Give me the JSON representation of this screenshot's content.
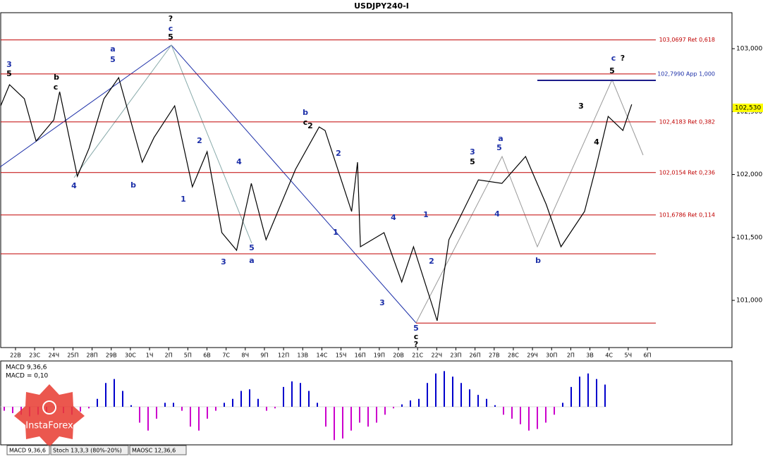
{
  "chart_data": {
    "type": "line",
    "title": "USDJPY240-I",
    "color": "#000000",
    "x": [
      0,
      3,
      8,
      12,
      18,
      20,
      26,
      30,
      35,
      40,
      48,
      52,
      59,
      65,
      70,
      75,
      80,
      85,
      90,
      100,
      108,
      110,
      119,
      121,
      122,
      130,
      136,
      140,
      148,
      152,
      162,
      170,
      178,
      185,
      190,
      198,
      202,
      206,
      211,
      214
    ],
    "values": [
      102546,
      102714,
      102602,
      102266,
      102434,
      102658,
      101986,
      102210,
      102602,
      102770,
      102098,
      102294,
      102546,
      101902,
      102182,
      101538,
      101398,
      101930,
      101482,
      102042,
      102378,
      102350,
      101706,
      102098,
      101426,
      101538,
      101146,
      101426,
      100838,
      101482,
      101958,
      101930,
      102143,
      101762,
      101426,
      101706,
      102070,
      102462,
      102350,
      102557
    ],
    "xlim": [
      0,
      248
    ],
    "ylim": [
      100625,
      103286
    ],
    "yticks": [
      {
        "value": 103000,
        "label": "103,000"
      },
      {
        "value": 102500,
        "label": "102,500"
      },
      {
        "value": 102000,
        "label": "102,000"
      },
      {
        "value": 101500,
        "label": "101,500"
      },
      {
        "value": 101000,
        "label": "101,000"
      }
    ],
    "current_price": {
      "value": 102530,
      "label": "102,530"
    },
    "levels": [
      {
        "value": 103069.7,
        "label": "103,0697 Ret 0,618"
      },
      {
        "value": 102799,
        "label": "102,7990 Арр 1,000"
      },
      {
        "value": 102418.3,
        "label": "102,4183 Ret 0,382"
      },
      {
        "value": 102015.4,
        "label": "102,0154 Ret 0,236"
      },
      {
        "value": 101678.6,
        "label": "101,6786 Ret 0,114"
      },
      101370,
      100820
    ],
    "categories": [
      "22В",
      "23С",
      "24Ч",
      "25П",
      "28П",
      "29В",
      "30С",
      "1Ч",
      "2П",
      "5П",
      "6В",
      "7С",
      "8Ч",
      "9П",
      "12П",
      "13В",
      "14С",
      "15Ч",
      "16П",
      "19П",
      "20В",
      "21С",
      "22Ч",
      "23П",
      "26П",
      "27В",
      "28С",
      "29Ч",
      "30П",
      "2П",
      "3В",
      "4С",
      "5Ч",
      "6П"
    ],
    "wave_labels": [
      {
        "text": "?",
        "color": "#000"
      },
      {
        "text": "c",
        "color": "#1c2fa8"
      },
      {
        "text": "5",
        "color": "#000"
      },
      {
        "text": "a",
        "color": "#1c2fa8"
      },
      {
        "text": "5",
        "color": "#1c2fa8"
      },
      {
        "text": "3",
        "color": "#1c2fa8"
      },
      {
        "text": "5",
        "color": "#000"
      },
      {
        "text": "b",
        "color": "#1c2fa8"
      },
      {
        "text": "c",
        "color": "#000"
      },
      {
        "text": "2",
        "color": "#000"
      },
      {
        "text": "a",
        "color": "#1c2fa8"
      },
      {
        "text": "5",
        "color": "#1c2fa8"
      },
      {
        "text": "3",
        "color": "#1c2fa8"
      },
      {
        "text": "5",
        "color": "#000"
      },
      {
        "text": "c",
        "color": "#1c2fa8"
      },
      {
        "text": "?",
        "color": "#000"
      },
      {
        "text": "5",
        "color": "#000"
      },
      {
        "text": "3",
        "color": "#000"
      },
      {
        "text": "4",
        "color": "#000"
      },
      {
        "text": "1",
        "color": "#1c2fa8"
      },
      {
        "text": "2",
        "color": "#1c2fa8"
      },
      {
        "text": "4",
        "color": "#1c2fa8"
      },
      {
        "text": "3",
        "color": "#1c2fa8"
      },
      {
        "text": "5",
        "color": "#1c2fa8"
      },
      {
        "text": "a",
        "color": "#1c2fa8"
      },
      {
        "text": "b",
        "color": "#1c2fa8"
      },
      {
        "text": "4",
        "color": "#1c2fa8"
      },
      {
        "text": "b",
        "color": "#000"
      },
      {
        "text": "c",
        "color": "#000"
      },
      {
        "text": "1",
        "color": "#1c2fa8"
      },
      {
        "text": "2",
        "color": "#1c2fa8"
      },
      {
        "text": "4",
        "color": "#1c2fa8"
      },
      {
        "text": "3",
        "color": "#1c2fa8"
      },
      {
        "text": "5",
        "color": "#1c2fa8"
      },
      {
        "text": "c",
        "color": "#000"
      },
      {
        "text": "?",
        "color": "#000"
      },
      {
        "text": "b",
        "color": "#1c2fa8"
      },
      {
        "text": "4",
        "color": "#1c2fa8"
      },
      {
        "text": "2",
        "color": "#1c2fa8"
      },
      {
        "text": "1",
        "color": "#1c2fa8"
      }
    ],
    "macd": {
      "label": "MACD 9,36,6",
      "value_text": "MACD = 0,10",
      "values": [
        -0.05,
        -0.08,
        -0.1,
        -0.12,
        -0.1,
        -0.08,
        -0.05,
        -0.08,
        -0.1,
        -0.06,
        -0.02,
        0.1,
        0.3,
        0.35,
        0.2,
        0.02,
        -0.2,
        -0.3,
        -0.15,
        0.05,
        0.05,
        -0.05,
        -0.25,
        -0.3,
        -0.15,
        -0.05,
        0.05,
        0.1,
        0.2,
        0.22,
        0.1,
        -0.05,
        -0.02,
        0.25,
        0.32,
        0.3,
        0.2,
        0.05,
        -0.25,
        -0.42,
        -0.4,
        -0.3,
        -0.2,
        -0.25,
        -0.2,
        -0.1,
        -0.02,
        0.03,
        0.08,
        0.1,
        0.3,
        0.42,
        0.45,
        0.38,
        0.3,
        0.22,
        0.15,
        0.1,
        0.02,
        -0.1,
        -0.15,
        -0.22,
        -0.3,
        -0.28,
        -0.2,
        -0.1,
        0.05,
        0.25,
        0.38,
        0.42,
        0.35,
        0.28
      ],
      "positive_color": "#0000cc",
      "negative_color": "#cc00cc"
    },
    "tabs": [
      "MACD 9,36,6",
      "Stoch 13,3,3 (80%-20%)",
      "MAOSC 12,36,6"
    ],
    "logo": "InstaForex"
  }
}
